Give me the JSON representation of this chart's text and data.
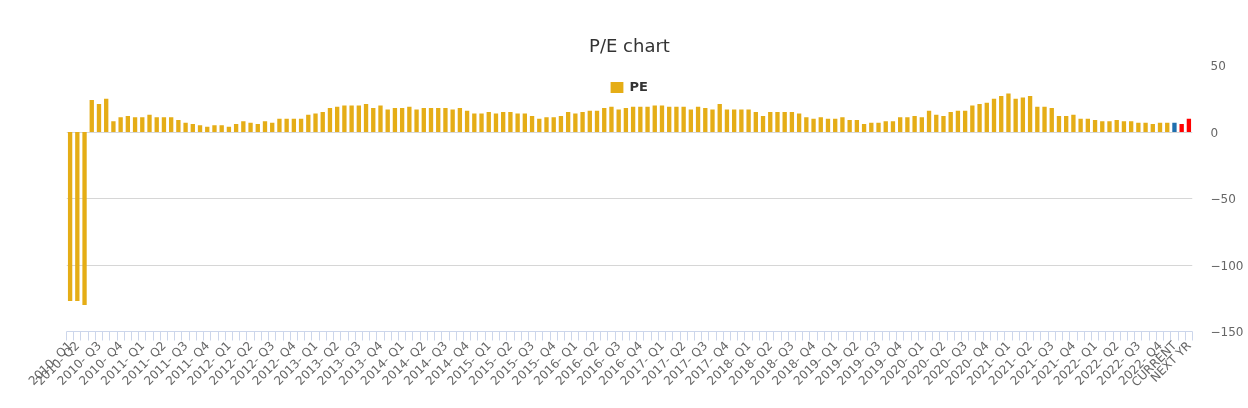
{
  "chart_data": {
    "type": "bar",
    "title": "P/E chart",
    "categories": [
      "2010- Q1",
      "2010- Q2",
      null,
      null,
      "2010- Q3",
      null,
      null,
      "2010- Q4",
      null,
      null,
      "2011- Q1",
      null,
      null,
      "2011- Q2",
      null,
      null,
      "2011- Q3",
      null,
      null,
      "2011- Q4",
      null,
      null,
      "2012- Q1",
      null,
      null,
      "2012- Q2",
      null,
      null,
      "2012- Q3",
      null,
      null,
      "2012- Q4",
      null,
      null,
      "2013- Q1",
      null,
      null,
      "2013- Q2",
      null,
      null,
      "2013- Q3",
      null,
      null,
      "2013- Q4",
      null,
      null,
      "2014- Q1",
      null,
      null,
      "2014- Q2",
      null,
      null,
      "2014- Q3",
      null,
      null,
      "2014- Q4",
      null,
      null,
      "2015- Q1",
      null,
      null,
      "2015- Q2",
      null,
      null,
      "2015- Q3",
      null,
      null,
      "2015- Q4",
      null,
      null,
      "2016- Q1",
      null,
      null,
      "2016- Q2",
      null,
      null,
      "2016- Q3",
      null,
      null,
      "2016- Q4",
      null,
      null,
      "2017- Q1",
      null,
      null,
      "2017- Q2",
      null,
      null,
      "2017- Q3",
      null,
      null,
      "2017- Q4",
      null,
      null,
      "2018- Q1",
      null,
      null,
      "2018- Q2",
      null,
      null,
      "2018- Q3",
      null,
      null,
      "2018- Q4",
      null,
      null,
      "2019- Q1",
      null,
      null,
      "2019- Q2",
      null,
      null,
      "2019- Q3",
      null,
      null,
      "2019- Q4",
      null,
      null,
      "2020- Q1",
      null,
      null,
      "2020- Q2",
      null,
      null,
      "2020- Q3",
      null,
      null,
      "2020- Q4",
      null,
      null,
      "2021- Q1",
      null,
      null,
      "2021- Q2",
      null,
      null,
      "2021- Q3",
      null,
      null,
      "2021- Q4",
      null,
      null,
      "2022- Q1",
      null,
      null,
      "2022- Q2",
      null,
      null,
      "2022- Q3",
      null,
      null,
      "2022- Q4",
      null,
      "CURRENT",
      null,
      "NEXT YR"
    ],
    "series": [
      {
        "name": "PE",
        "values": [
          -127,
          -127,
          -130,
          24,
          21,
          25,
          8,
          11,
          12,
          11,
          11,
          13,
          11,
          11,
          11,
          9,
          7,
          6,
          5,
          4,
          5,
          5,
          4,
          6,
          8,
          7,
          6,
          8,
          7,
          10,
          10,
          10,
          10,
          13,
          14,
          15,
          18,
          19,
          20,
          20,
          20,
          21,
          18,
          20,
          17,
          18,
          18,
          19,
          17,
          18,
          18,
          18,
          18,
          17,
          18,
          16,
          14,
          14,
          15,
          14,
          15,
          15,
          14,
          14,
          12,
          10,
          11,
          11,
          12,
          15,
          14,
          15,
          16,
          16,
          18,
          19,
          17,
          18,
          19,
          19,
          19,
          20,
          20,
          19,
          19,
          19,
          17,
          19,
          18,
          17,
          21,
          17,
          17,
          17,
          17,
          15,
          12,
          15,
          15,
          15,
          15,
          14,
          11,
          10,
          11,
          10,
          10,
          11,
          9,
          9,
          6,
          7,
          7,
          8,
          8,
          11,
          11,
          12,
          11,
          16,
          13,
          12,
          15,
          16,
          16,
          20,
          21,
          22,
          25,
          27,
          29,
          25,
          26,
          27,
          19,
          19,
          18,
          12,
          12,
          13,
          10,
          10,
          9,
          8,
          8,
          9,
          8,
          8,
          7,
          7,
          6,
          7,
          7,
          7,
          6,
          10
        ],
        "colors": [
          "#e5ad16",
          "#e5ad16",
          "#e5ad16",
          "#e5ad16",
          "#e5ad16",
          "#e5ad16",
          "#e5ad16",
          "#e5ad16",
          "#e5ad16",
          "#e5ad16",
          "#e5ad16",
          "#e5ad16",
          "#e5ad16",
          "#e5ad16",
          "#e5ad16",
          "#e5ad16",
          "#e5ad16",
          "#e5ad16",
          "#e5ad16",
          "#e5ad16",
          "#e5ad16",
          "#e5ad16",
          "#e5ad16",
          "#e5ad16",
          "#e5ad16",
          "#e5ad16",
          "#e5ad16",
          "#e5ad16",
          "#e5ad16",
          "#e5ad16",
          "#e5ad16",
          "#e5ad16",
          "#e5ad16",
          "#e5ad16",
          "#e5ad16",
          "#e5ad16",
          "#e5ad16",
          "#e5ad16",
          "#e5ad16",
          "#e5ad16",
          "#e5ad16",
          "#e5ad16",
          "#e5ad16",
          "#e5ad16",
          "#e5ad16",
          "#e5ad16",
          "#e5ad16",
          "#e5ad16",
          "#e5ad16",
          "#e5ad16",
          "#e5ad16",
          "#e5ad16",
          "#e5ad16",
          "#e5ad16",
          "#e5ad16",
          "#e5ad16",
          "#e5ad16",
          "#e5ad16",
          "#e5ad16",
          "#e5ad16",
          "#e5ad16",
          "#e5ad16",
          "#e5ad16",
          "#e5ad16",
          "#e5ad16",
          "#e5ad16",
          "#e5ad16",
          "#e5ad16",
          "#e5ad16",
          "#e5ad16",
          "#e5ad16",
          "#e5ad16",
          "#e5ad16",
          "#e5ad16",
          "#e5ad16",
          "#e5ad16",
          "#e5ad16",
          "#e5ad16",
          "#e5ad16",
          "#e5ad16",
          "#e5ad16",
          "#e5ad16",
          "#e5ad16",
          "#e5ad16",
          "#e5ad16",
          "#e5ad16",
          "#e5ad16",
          "#e5ad16",
          "#e5ad16",
          "#e5ad16",
          "#e5ad16",
          "#e5ad16",
          "#e5ad16",
          "#e5ad16",
          "#e5ad16",
          "#e5ad16",
          "#e5ad16",
          "#e5ad16",
          "#e5ad16",
          "#e5ad16",
          "#e5ad16",
          "#e5ad16",
          "#e5ad16",
          "#e5ad16",
          "#e5ad16",
          "#e5ad16",
          "#e5ad16",
          "#e5ad16",
          "#e5ad16",
          "#e5ad16",
          "#e5ad16",
          "#e5ad16",
          "#e5ad16",
          "#e5ad16",
          "#e5ad16",
          "#e5ad16",
          "#e5ad16",
          "#e5ad16",
          "#e5ad16",
          "#e5ad16",
          "#e5ad16",
          "#e5ad16",
          "#e5ad16",
          "#e5ad16",
          "#e5ad16",
          "#e5ad16",
          "#e5ad16",
          "#e5ad16",
          "#e5ad16",
          "#e5ad16",
          "#e5ad16",
          "#e5ad16",
          "#e5ad16",
          "#e5ad16",
          "#e5ad16",
          "#e5ad16",
          "#e5ad16",
          "#e5ad16",
          "#e5ad16",
          "#e5ad16",
          "#e5ad16",
          "#e5ad16",
          "#e5ad16",
          "#e5ad16",
          "#e5ad16",
          "#e5ad16",
          "#e5ad16",
          "#e5ad16",
          "#e5ad16",
          "#e5ad16",
          "#e5ad16",
          "#e5ad16",
          "#e5ad16",
          "#1f6fae",
          "#ff0000",
          "#ff0000"
        ]
      }
    ],
    "ylim": [
      -150,
      50
    ],
    "yticks": [
      -150,
      -100,
      -50,
      0,
      50
    ],
    "grid": "y",
    "legend": "top"
  }
}
